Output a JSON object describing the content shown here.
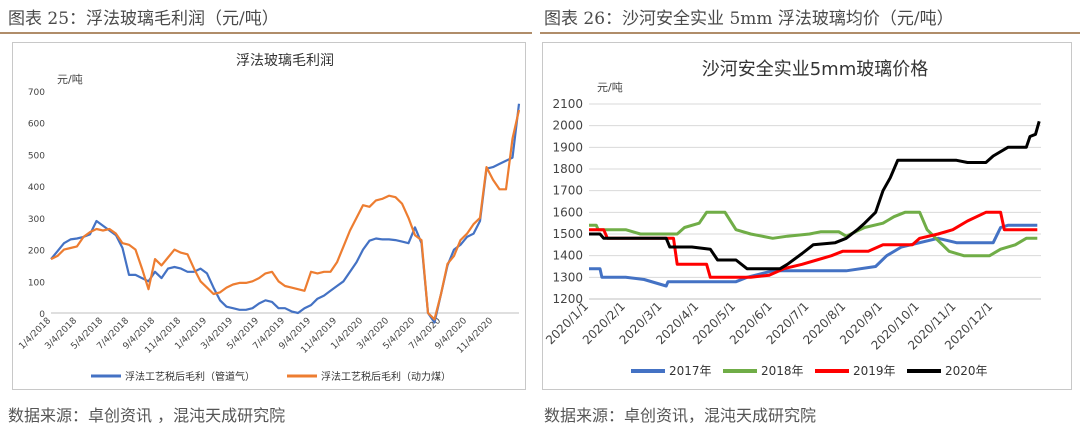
{
  "left_panel": {
    "header": "图表 25：浮法玻璃毛利润（元/吨）",
    "source": "数据来源：卓创资讯 ，混沌天成研究院"
  },
  "right_panel": {
    "header": "图表 26：沙河安全实业 5mm 浮法玻璃均价（元/吨）",
    "source": "数据来源：卓创资讯，混沌天成研究院"
  },
  "chart_data": [
    {
      "type": "line",
      "title": "浮法玻璃毛利润",
      "ylabel": "元/吨",
      "ylim": [
        0,
        700
      ],
      "yticks": [
        0,
        100,
        200,
        300,
        400,
        500,
        600,
        700
      ],
      "x_tick_labels": [
        "1/4/2018",
        "3/4/2018",
        "5/4/2018",
        "7/4/2018",
        "9/4/2018",
        "11/4/2018",
        "1/4/2019",
        "3/4/2019",
        "5/4/2019",
        "7/4/2019",
        "9/4/2019",
        "11/4/2019",
        "1/4/2020",
        "3/4/2020",
        "5/4/2020",
        "7/4/2020",
        "9/4/2020",
        "11/4/2020"
      ],
      "xlim": [
        0,
        36
      ],
      "legend_position": "bottom",
      "series": [
        {
          "name": "浮法工艺税后毛利（管道气）",
          "color": "#4472c4",
          "points": [
            [
              0,
              170
            ],
            [
              0.5,
              195
            ],
            [
              1,
              220
            ],
            [
              1.5,
              232
            ],
            [
              2,
              235
            ],
            [
              2.5,
              240
            ],
            [
              3,
              248
            ],
            [
              3.5,
              290
            ],
            [
              4,
              275
            ],
            [
              4.5,
              260
            ],
            [
              5,
              245
            ],
            [
              5.5,
              205
            ],
            [
              6,
              120
            ],
            [
              6.5,
              120
            ],
            [
              7,
              110
            ],
            [
              7.5,
              100
            ],
            [
              8,
              130
            ],
            [
              8.5,
              110
            ],
            [
              9,
              140
            ],
            [
              9.5,
              145
            ],
            [
              10,
              140
            ],
            [
              10.5,
              130
            ],
            [
              11,
              130
            ],
            [
              11.5,
              140
            ],
            [
              12,
              125
            ],
            [
              12.5,
              80
            ],
            [
              13,
              40
            ],
            [
              13.5,
              20
            ],
            [
              14,
              15
            ],
            [
              14.5,
              10
            ],
            [
              15,
              10
            ],
            [
              15.5,
              15
            ],
            [
              16,
              30
            ],
            [
              16.5,
              40
            ],
            [
              17,
              35
            ],
            [
              17.5,
              15
            ],
            [
              18,
              15
            ],
            [
              18.5,
              5
            ],
            [
              19,
              0
            ],
            [
              19.5,
              15
            ],
            [
              20,
              25
            ],
            [
              20.5,
              45
            ],
            [
              21,
              55
            ],
            [
              21.5,
              70
            ],
            [
              22,
              85
            ],
            [
              22.5,
              100
            ],
            [
              23,
              130
            ],
            [
              23.5,
              160
            ],
            [
              24,
              200
            ],
            [
              24.5,
              228
            ],
            [
              25,
              235
            ],
            [
              25.5,
              232
            ],
            [
              26,
              232
            ],
            [
              26.5,
              230
            ],
            [
              27,
              225
            ],
            [
              27.5,
              220
            ],
            [
              28,
              270
            ],
            [
              28.5,
              220
            ],
            [
              29,
              0
            ],
            [
              29.5,
              -30
            ],
            [
              30,
              60
            ],
            [
              30.5,
              150
            ],
            [
              31,
              200
            ],
            [
              31.5,
              215
            ],
            [
              32,
              240
            ],
            [
              32.5,
              250
            ],
            [
              33,
              290
            ],
            [
              33.5,
              455
            ],
            [
              34,
              460
            ],
            [
              34.5,
              470
            ],
            [
              35,
              480
            ],
            [
              35.5,
              490
            ],
            [
              36,
              660
            ]
          ]
        },
        {
          "name": "浮法工艺税后毛利（动力煤）",
          "color": "#ed7d31",
          "points": [
            [
              0,
              170
            ],
            [
              0.5,
              180
            ],
            [
              1,
              200
            ],
            [
              1.5,
              205
            ],
            [
              2,
              210
            ],
            [
              2.5,
              240
            ],
            [
              3,
              255
            ],
            [
              3.5,
              265
            ],
            [
              4,
              260
            ],
            [
              4.5,
              265
            ],
            [
              5,
              250
            ],
            [
              5.5,
              220
            ],
            [
              6,
              215
            ],
            [
              6.5,
              200
            ],
            [
              7,
              140
            ],
            [
              7.5,
              75
            ],
            [
              8,
              170
            ],
            [
              8.5,
              150
            ],
            [
              9,
              175
            ],
            [
              9.5,
              200
            ],
            [
              10,
              190
            ],
            [
              10.5,
              185
            ],
            [
              11,
              140
            ],
            [
              11.5,
              100
            ],
            [
              12,
              80
            ],
            [
              12.5,
              60
            ],
            [
              13,
              65
            ],
            [
              13.5,
              80
            ],
            [
              14,
              90
            ],
            [
              14.5,
              95
            ],
            [
              15,
              95
            ],
            [
              15.5,
              100
            ],
            [
              16,
              110
            ],
            [
              16.5,
              125
            ],
            [
              17,
              130
            ],
            [
              17.5,
              100
            ],
            [
              18,
              85
            ],
            [
              18.5,
              80
            ],
            [
              19,
              75
            ],
            [
              19.5,
              70
            ],
            [
              20,
              130
            ],
            [
              20.5,
              125
            ],
            [
              21,
              130
            ],
            [
              21.5,
              130
            ],
            [
              22,
              160
            ],
            [
              22.5,
              210
            ],
            [
              23,
              260
            ],
            [
              23.5,
              300
            ],
            [
              24,
              340
            ],
            [
              24.5,
              335
            ],
            [
              25,
              355
            ],
            [
              25.5,
              360
            ],
            [
              26,
              370
            ],
            [
              26.5,
              365
            ],
            [
              27,
              345
            ],
            [
              27.5,
              300
            ],
            [
              28,
              245
            ],
            [
              28.5,
              230
            ],
            [
              29,
              0
            ],
            [
              29.5,
              -20
            ],
            [
              30,
              60
            ],
            [
              30.5,
              155
            ],
            [
              31,
              180
            ],
            [
              31.5,
              230
            ],
            [
              32,
              250
            ],
            [
              32.5,
              280
            ],
            [
              33,
              300
            ],
            [
              33.5,
              460
            ],
            [
              34,
              420
            ],
            [
              34.5,
              390
            ],
            [
              35,
              390
            ],
            [
              35.5,
              550
            ],
            [
              36,
              640
            ]
          ]
        }
      ]
    },
    {
      "type": "line",
      "title": "沙河安全实业5mm玻璃价格",
      "ylabel": "元/吨",
      "ylim": [
        1200,
        2100
      ],
      "yticks": [
        1200,
        1300,
        1400,
        1500,
        1600,
        1700,
        1800,
        1900,
        2000,
        2100
      ],
      "x_tick_labels": [
        "2020/1/1",
        "2020/2/1",
        "2020/3/1",
        "2020/4/1",
        "2020/5/1",
        "2020/6/1",
        "2020/7/1",
        "2020/8/1",
        "2020/9/1",
        "2020/10/1",
        "2020/11/1",
        "2020/12/1"
      ],
      "xlim": [
        0,
        12.3
      ],
      "legend_position": "bottom",
      "series": [
        {
          "name": "2017年",
          "color": "#4472c4",
          "points": [
            [
              0,
              1340
            ],
            [
              0.3,
              1340
            ],
            [
              0.35,
              1300
            ],
            [
              1.0,
              1300
            ],
            [
              1.5,
              1290
            ],
            [
              2.1,
              1260
            ],
            [
              2.15,
              1280
            ],
            [
              4.0,
              1280
            ],
            [
              4.3,
              1300
            ],
            [
              5.0,
              1330
            ],
            [
              6.0,
              1330
            ],
            [
              7.0,
              1330
            ],
            [
              7.8,
              1350
            ],
            [
              8.1,
              1400
            ],
            [
              8.5,
              1440
            ],
            [
              9.5,
              1480
            ],
            [
              10.0,
              1460
            ],
            [
              11.0,
              1460
            ],
            [
              11.2,
              1530
            ],
            [
              11.4,
              1540
            ],
            [
              12.2,
              1540
            ]
          ]
        },
        {
          "name": "2018年",
          "color": "#70ad47",
          "points": [
            [
              0,
              1540
            ],
            [
              0.2,
              1540
            ],
            [
              0.25,
              1520
            ],
            [
              1.0,
              1520
            ],
            [
              1.4,
              1500
            ],
            [
              2.4,
              1500
            ],
            [
              2.6,
              1530
            ],
            [
              3.0,
              1550
            ],
            [
              3.2,
              1600
            ],
            [
              3.7,
              1600
            ],
            [
              4.0,
              1520
            ],
            [
              4.4,
              1500
            ],
            [
              5.0,
              1480
            ],
            [
              5.4,
              1490
            ],
            [
              6.0,
              1500
            ],
            [
              6.3,
              1510
            ],
            [
              6.8,
              1510
            ],
            [
              7.0,
              1490
            ],
            [
              7.5,
              1530
            ],
            [
              8.0,
              1550
            ],
            [
              8.3,
              1580
            ],
            [
              8.6,
              1600
            ],
            [
              9.0,
              1600
            ],
            [
              9.2,
              1520
            ],
            [
              9.5,
              1470
            ],
            [
              9.8,
              1420
            ],
            [
              10.2,
              1400
            ],
            [
              10.9,
              1400
            ],
            [
              11.2,
              1430
            ],
            [
              11.6,
              1450
            ],
            [
              11.9,
              1480
            ],
            [
              12.2,
              1480
            ]
          ]
        },
        {
          "name": "2019年",
          "color": "#ff0000",
          "points": [
            [
              0,
              1520
            ],
            [
              0.4,
              1520
            ],
            [
              0.5,
              1480
            ],
            [
              1.3,
              1480
            ],
            [
              2.0,
              1480
            ],
            [
              2.3,
              1480
            ],
            [
              2.4,
              1360
            ],
            [
              3.2,
              1360
            ],
            [
              3.3,
              1300
            ],
            [
              4.4,
              1300
            ],
            [
              4.9,
              1310
            ],
            [
              5.3,
              1340
            ],
            [
              5.8,
              1360
            ],
            [
              6.2,
              1380
            ],
            [
              6.6,
              1400
            ],
            [
              6.9,
              1420
            ],
            [
              7.6,
              1420
            ],
            [
              8.0,
              1450
            ],
            [
              8.8,
              1450
            ],
            [
              9.0,
              1480
            ],
            [
              9.5,
              1500
            ],
            [
              9.9,
              1520
            ],
            [
              10.3,
              1560
            ],
            [
              10.8,
              1600
            ],
            [
              11.2,
              1600
            ],
            [
              11.3,
              1520
            ],
            [
              12.2,
              1520
            ]
          ]
        },
        {
          "name": "2020年",
          "color": "#000000",
          "points": [
            [
              0,
              1500
            ],
            [
              0.3,
              1500
            ],
            [
              0.4,
              1480
            ],
            [
              1.5,
              1480
            ],
            [
              2.1,
              1480
            ],
            [
              2.2,
              1440
            ],
            [
              2.8,
              1440
            ],
            [
              3.3,
              1430
            ],
            [
              3.5,
              1380
            ],
            [
              4.0,
              1380
            ],
            [
              4.3,
              1340
            ],
            [
              5.2,
              1340
            ],
            [
              5.4,
              1360
            ],
            [
              5.8,
              1410
            ],
            [
              6.1,
              1450
            ],
            [
              6.7,
              1460
            ],
            [
              7.0,
              1480
            ],
            [
              7.3,
              1520
            ],
            [
              7.5,
              1550
            ],
            [
              7.8,
              1600
            ],
            [
              8.0,
              1700
            ],
            [
              8.2,
              1760
            ],
            [
              8.4,
              1840
            ],
            [
              9.0,
              1840
            ],
            [
              10.0,
              1840
            ],
            [
              10.3,
              1830
            ],
            [
              10.8,
              1830
            ],
            [
              11.0,
              1860
            ],
            [
              11.4,
              1900
            ],
            [
              11.9,
              1900
            ],
            [
              12.0,
              1950
            ],
            [
              12.15,
              1960
            ],
            [
              12.25,
              2020
            ]
          ]
        }
      ]
    }
  ]
}
